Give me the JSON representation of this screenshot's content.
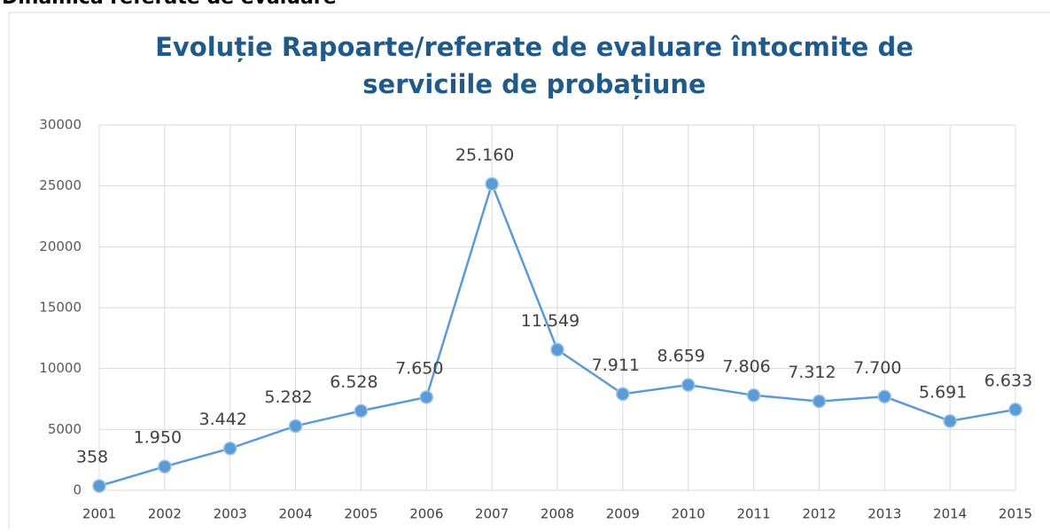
{
  "heading": "Dinamica referate de evaluare",
  "chart_data": {
    "type": "line",
    "title": [
      "Evoluție Rapoarte/referate de evaluare  întocmite de",
      "serviciile de probațiune"
    ],
    "categories": [
      "2001",
      "2002",
      "2003",
      "2004",
      "2005",
      "2006",
      "2007",
      "2008",
      "2009",
      "2010",
      "2011",
      "2012",
      "2013",
      "2014",
      "2015"
    ],
    "series": [
      {
        "color": "#5b9bd5",
        "values": [
          358,
          1950,
          3442,
          5282,
          6528,
          7650,
          25160,
          11549,
          7911,
          8659,
          7806,
          7312,
          7700,
          5691,
          6633
        ],
        "value_labels": [
          "358",
          "1.950",
          "3.442",
          "5.282",
          "6.528",
          "7.650",
          "25.160",
          "11.549",
          "7.911",
          "8.659",
          "7.806",
          "7.312",
          "7.700",
          "5.691",
          "6.633"
        ]
      }
    ],
    "ylim": [
      0,
      30000
    ],
    "yticks": [
      0,
      5000,
      10000,
      15000,
      20000,
      25000,
      30000
    ],
    "grid": true
  }
}
